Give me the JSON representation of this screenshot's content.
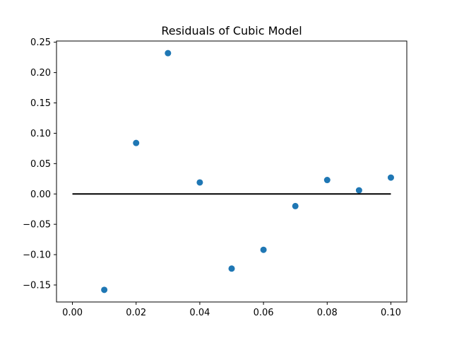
{
  "chart_data": {
    "type": "scatter",
    "title": "Residuals of Cubic Model",
    "xlabel": "",
    "ylabel": "",
    "xlim": [
      -0.005,
      0.105
    ],
    "ylim": [
      -0.178,
      0.252
    ],
    "x_ticks": [
      0.0,
      0.02,
      0.04,
      0.06,
      0.08,
      0.1
    ],
    "x_tick_labels": [
      "0.00",
      "0.02",
      "0.04",
      "0.06",
      "0.08",
      "0.10"
    ],
    "y_ticks": [
      -0.15,
      -0.1,
      -0.05,
      0.0,
      0.05,
      0.1,
      0.15,
      0.2,
      0.25
    ],
    "y_tick_labels": [
      "−0.15",
      "−0.10",
      "−0.05",
      "0.00",
      "0.05",
      "0.10",
      "0.15",
      "0.20",
      "0.25"
    ],
    "grid": false,
    "series": [
      {
        "type": "scatter",
        "color": "#1f77b4",
        "x": [
          0.01,
          0.02,
          0.03,
          0.04,
          0.05,
          0.06,
          0.07,
          0.08,
          0.09,
          0.1
        ],
        "y": [
          -0.158,
          0.084,
          0.232,
          0.019,
          -0.123,
          -0.092,
          -0.02,
          0.023,
          0.006,
          0.027
        ]
      },
      {
        "type": "line",
        "color": "#000000",
        "x": [
          0.0,
          0.1
        ],
        "y": [
          0.0,
          0.0
        ]
      }
    ]
  }
}
